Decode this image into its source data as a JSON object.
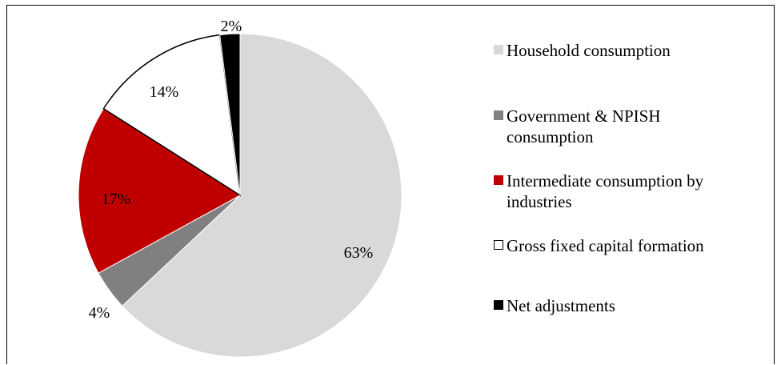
{
  "chart_data": {
    "type": "pie",
    "slices": [
      {
        "name": "Household consumption",
        "value": 63,
        "label": "63%",
        "color": "#d9d9d9"
      },
      {
        "name": "Government & NPISH consumption",
        "value": 4,
        "label": "4%",
        "color": "#808080"
      },
      {
        "name": "Intermediate consumption by industries",
        "value": 17,
        "label": "17%",
        "color": "#c00000"
      },
      {
        "name": "Gross fixed capital formation",
        "value": 14,
        "label": "14%",
        "color": "#ffffff"
      },
      {
        "name": "Net adjustments",
        "value": 2,
        "label": "2%",
        "color": "#000000"
      }
    ],
    "start_angle_deg": 0,
    "direction": "clockwise",
    "legend_position": "right"
  },
  "legend": [
    {
      "text": "Household consumption"
    },
    {
      "text": "Government & NPISH consumption"
    },
    {
      "text": "Intermediate consumption by industries"
    },
    {
      "text": "Gross fixed capital formation"
    },
    {
      "text": "Net adjustments"
    }
  ]
}
